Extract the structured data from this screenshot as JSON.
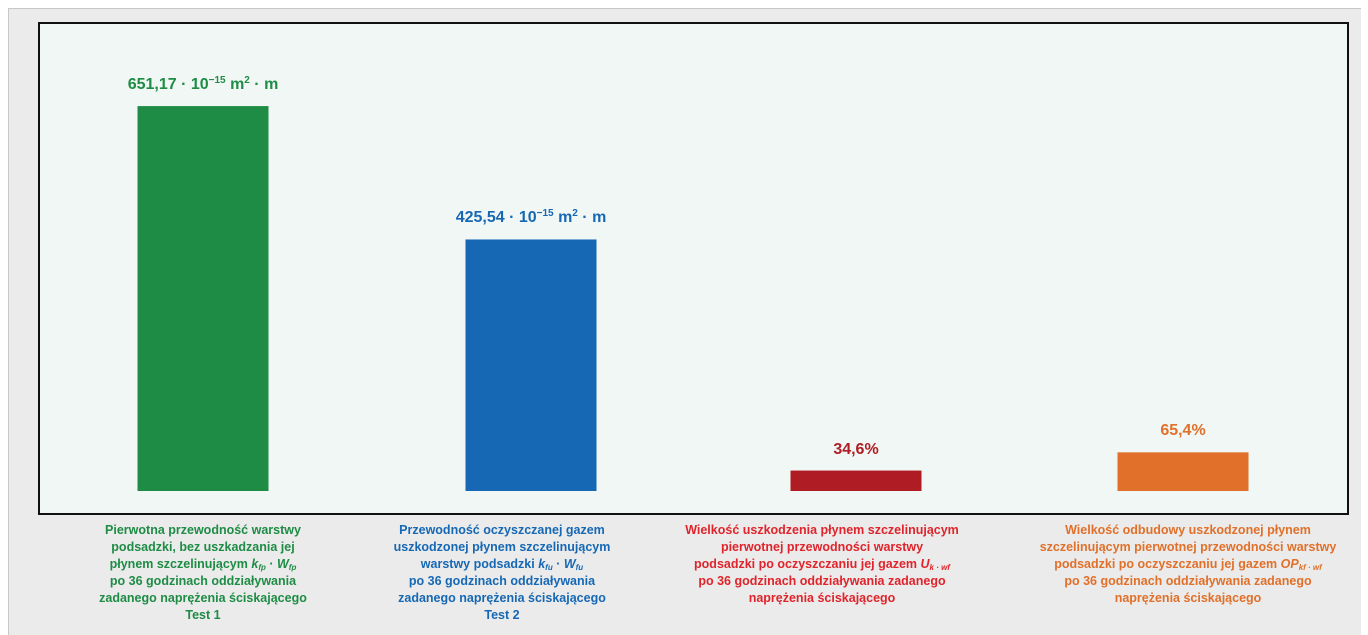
{
  "chart_data": {
    "type": "bar",
    "title": "",
    "xlabel": "",
    "ylabel": "",
    "ylim": [
      0,
      765
    ],
    "grid": false,
    "legend": "none",
    "categories": [
      [
        "Pierwotna przewodność warstwy",
        "podsadzki, bez uszkadzania jej",
        "płynem szczelinującym k_fp · W_fp",
        "po 36 godzinach oddziaływania",
        "zadanego naprężenia ściskającego",
        "Test 1"
      ],
      [
        "Przewodność oczyszczanej gazem",
        "uszkodzonej płynem szczelinującym",
        "warstwy podsadzki k_fu · W_fu",
        "po 36 godzinach oddziaływania",
        "zadanego naprężenia ściskającego",
        "Test 2"
      ],
      [
        "Wielkość uszkodzenia płynem szczelinującym",
        "pierwotnej przewodności warstwy",
        "podsadzki po oczyszczaniu jej gazem U_k · wf",
        "po 36 godzinach oddziaływania zadanego",
        "naprężenia ściskającego"
      ],
      [
        "Wielkość odbudowy uszkodzonej płynem",
        "szczelinującym pierwotnej przewodności warstwy",
        "podsadzki po oczyszczaniu jej gazem OP_kf · wf",
        "po 36 godzinach oddziaływania zadanego",
        "naprężenia ściskającego"
      ]
    ],
    "values": [
      651.17,
      425.54,
      34.6,
      65.4
    ],
    "value_units": [
      "10⁻¹⁵ m² · m",
      "10⁻¹⁵ m² · m",
      "%",
      "%"
    ],
    "data_labels": {
      "bar1": {
        "number": "651,17",
        "prefix": " · 10",
        "exp": "−15",
        "unit": " m",
        "unit_exp": "2",
        "tail": " · m"
      },
      "bar2": {
        "number": "425,54",
        "prefix": " · 10",
        "exp": "−15",
        "unit": " m",
        "unit_exp": "2",
        "tail": " · m"
      },
      "bar3": "34,6%",
      "bar4": "65,4%"
    },
    "colors": [
      "#1e8c45",
      "#1668b4",
      "#b01c23",
      "#e0702a"
    ],
    "label_colors": [
      "#1e8c45",
      "#1668b4",
      "#e0242b",
      "#e0702a"
    ]
  },
  "labels": {
    "cat1": {
      "l1": "Pierwotna przewodność warstwy",
      "l2": "podsadzki, bez uszkadzania jej",
      "l3_text": "płynem szczelinującym ",
      "l3_k": "k",
      "l3_ksub": "fp",
      "l3_dot": " · ",
      "l3_w": "W",
      "l3_wsub": "fp",
      "l4": "po 36 godzinach oddziaływania",
      "l5": "zadanego naprężenia ściskającego",
      "l6": "Test 1"
    },
    "cat2": {
      "l1": "Przewodność oczyszczanej gazem",
      "l2": "uszkodzonej płynem szczelinującym",
      "l3_text": "warstwy podsadzki  ",
      "l3_k": "k",
      "l3_ksub": "fu",
      "l3_dot": " · ",
      "l3_w": "W",
      "l3_wsub": "fu",
      "l4": "po 36 godzinach oddziaływania",
      "l5": "zadanego naprężenia ściskającego",
      "l6": "Test 2"
    },
    "cat3": {
      "l1": "Wielkość uszkodzenia płynem szczelinującym",
      "l2": "pierwotnej przewodności warstwy",
      "l3_text": "podsadzki po oczyszczaniu jej gazem  ",
      "l3_u": "U",
      "l3_usub": "k · wf",
      "l4": "po 36 godzinach oddziaływania zadanego",
      "l5": "naprężenia ściskającego"
    },
    "cat4": {
      "l1": "Wielkość odbudowy uszkodzonej płynem",
      "l2": "szczelinującym pierwotnej przewodności warstwy",
      "l3_text": "podsadzki po oczyszczaniu jej gazem ",
      "l3_op": "OP",
      "l3_opsub": "kf · wf",
      "l4": "po 36 godzinach oddziaływania zadanego",
      "l5": "naprężenia ściskającego"
    }
  }
}
